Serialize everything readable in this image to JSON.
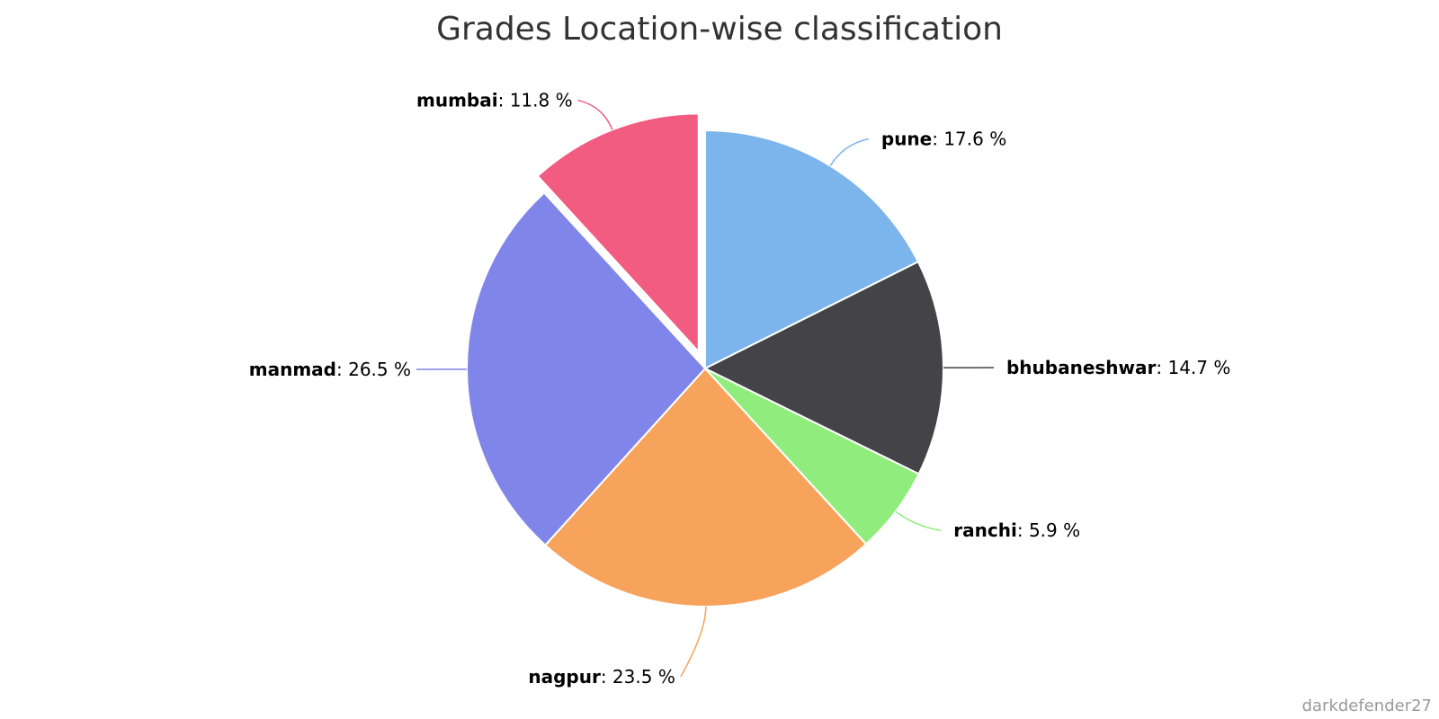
{
  "chart_data": {
    "type": "pie",
    "title": "Grades Location-wise classification",
    "unit": "%",
    "slices": [
      {
        "name": "pune",
        "value": 17.6,
        "color": "#7cb5ec",
        "label_side": "right",
        "sliced": false
      },
      {
        "name": "bhubaneshwar",
        "value": 14.7,
        "color": "#434348",
        "label_side": "right",
        "sliced": false
      },
      {
        "name": "ranchi",
        "value": 5.9,
        "color": "#90ed7d",
        "label_side": "right",
        "sliced": false
      },
      {
        "name": "nagpur",
        "value": 23.5,
        "color": "#f7a35c",
        "label_side": "left",
        "sliced": false
      },
      {
        "name": "manmad",
        "value": 26.5,
        "color": "#8085e9",
        "label_side": "left",
        "sliced": false
      },
      {
        "name": "mumbai",
        "value": 11.8,
        "color": "#f15c80",
        "label_side": "left",
        "sliced": true
      }
    ]
  },
  "credits": "darkdefender27"
}
